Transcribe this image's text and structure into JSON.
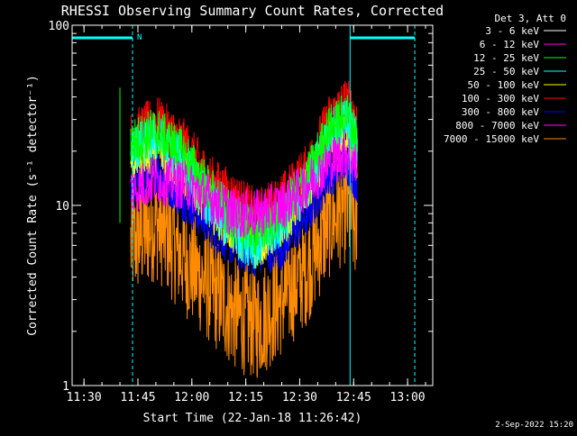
{
  "chart_data": {
    "type": "line",
    "title": "RHESSI Observing Summary Count Rates, Corrected",
    "xlabel": "Start Time (22-Jan-18 11:26:42)",
    "ylabel": "Corrected Count Rate (s⁻¹ detector⁻¹)",
    "yscale": "log",
    "ylim": [
      1,
      100
    ],
    "xlim": [
      "11:26:42",
      "13:07:00"
    ],
    "x_ticks": [
      "11:30",
      "11:45",
      "12:00",
      "12:15",
      "12:30",
      "12:45",
      "13:00"
    ],
    "y_ticks": [
      "1",
      "10",
      "100"
    ],
    "grid": false,
    "legend_position": "top-right",
    "legend_title": "Det 3, Att 0",
    "series": [
      {
        "name": "3 - 6 keV",
        "color": "#ffffff",
        "visible": false
      },
      {
        "name": "6 - 12 keV",
        "color": "#ff00ff",
        "x": [
          "11:43",
          "11:50",
          "11:58",
          "12:05",
          "12:12",
          "12:18",
          "12:25",
          "12:32",
          "12:38",
          "12:43",
          "12:46"
        ],
        "y": [
          12,
          14,
          13,
          11,
          9,
          9,
          10,
          13,
          17,
          20,
          16
        ]
      },
      {
        "name": "12 - 25 keV",
        "color": "#00ff00",
        "x": [
          "11:43",
          "11:50",
          "11:58",
          "12:05",
          "12:12",
          "12:18",
          "12:25",
          "12:32",
          "12:38",
          "12:43",
          "12:46"
        ],
        "y": [
          22,
          26,
          19,
          12,
          8,
          7,
          9,
          14,
          26,
          32,
          24
        ]
      },
      {
        "name": "25 - 50 keV",
        "color": "#00ffff",
        "x": [
          "11:43",
          "11:50",
          "11:58",
          "12:05",
          "12:12",
          "12:18",
          "12:25",
          "12:32",
          "12:38",
          "12:43",
          "12:46"
        ],
        "y": [
          20,
          24,
          17,
          10,
          7,
          6,
          8,
          13,
          24,
          30,
          22
        ]
      },
      {
        "name": "50 - 100 keV",
        "color": "#ffff00",
        "x": [
          "11:43",
          "11:50",
          "11:58",
          "12:05",
          "12:12",
          "12:18",
          "12:25",
          "12:32",
          "12:38",
          "12:43",
          "12:46"
        ],
        "y": [
          18,
          21,
          15,
          10,
          7,
          6,
          8,
          12,
          21,
          26,
          19
        ]
      },
      {
        "name": "100 - 300 keV",
        "color": "#ff0000",
        "x": [
          "11:43",
          "11:50",
          "11:58",
          "12:05",
          "12:12",
          "12:18",
          "12:25",
          "12:32",
          "12:38",
          "12:43",
          "12:46"
        ],
        "y": [
          24,
          30,
          22,
          14,
          11,
          9,
          11,
          16,
          30,
          38,
          30
        ]
      },
      {
        "name": "300 - 800 keV",
        "color": "#0000ff",
        "x": [
          "11:43",
          "11:50",
          "11:58",
          "12:05",
          "12:12",
          "12:18",
          "12:25",
          "12:32",
          "12:38",
          "12:43",
          "12:46"
        ],
        "y": [
          14,
          16,
          11,
          8,
          6,
          5.5,
          6,
          9,
          15,
          18,
          14
        ]
      },
      {
        "name": "800 - 7000 keV",
        "color": "#ff00ff",
        "visible": false
      },
      {
        "name": "7000 - 15000 keV",
        "color": "#ff8c00",
        "x": [
          "11:43",
          "11:50",
          "11:58",
          "12:05",
          "12:12",
          "12:18",
          "12:25",
          "12:32",
          "12:38",
          "12:43",
          "12:46"
        ],
        "y": [
          6,
          8,
          5,
          3.5,
          2.5,
          2.2,
          3,
          4.5,
          8,
          10,
          7
        ]
      }
    ],
    "spike": {
      "x": "11:40",
      "y": 45,
      "color": "#00ff00"
    },
    "flag_bars": [
      {
        "start": "11:26:42",
        "end": "11:43:30",
        "label": "N",
        "color": "#00ffff"
      },
      {
        "start": "12:44:00",
        "end": "13:02:00",
        "label": "",
        "color": "#00ffff"
      }
    ],
    "vertical_markers": [
      {
        "x": "11:26:42",
        "style": "solid",
        "color": "#00ffff"
      },
      {
        "x": "11:43:30",
        "style": "dashed",
        "color": "#00ffff"
      },
      {
        "x": "12:44:00",
        "style": "solid",
        "color": "#00ffff"
      },
      {
        "x": "13:02:00",
        "style": "dashed",
        "color": "#00ffff"
      }
    ]
  },
  "footer": {
    "timestamp": "2-Sep-2022 15:20"
  }
}
